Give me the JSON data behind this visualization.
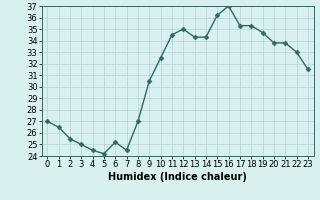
{
  "x": [
    0,
    1,
    2,
    3,
    4,
    5,
    6,
    7,
    8,
    9,
    10,
    11,
    12,
    13,
    14,
    15,
    16,
    17,
    18,
    19,
    20,
    21,
    22,
    23
  ],
  "y": [
    27,
    26.5,
    25.5,
    25,
    24.5,
    24.2,
    25.2,
    24.5,
    27,
    30.5,
    32.5,
    34.5,
    35,
    34.3,
    34.3,
    36.2,
    37,
    35.3,
    35.3,
    34.7,
    33.8,
    33.8,
    33,
    31.5
  ],
  "line_color": "#2e6b5e",
  "marker_color": "#2e6b5e",
  "bg_color": "#d8f0ee",
  "grid_color": "#b8d4d0",
  "xlabel": "Humidex (Indice chaleur)",
  "ylim": [
    24,
    37
  ],
  "xlim": [
    -0.5,
    23.5
  ],
  "yticks": [
    24,
    25,
    26,
    27,
    28,
    29,
    30,
    31,
    32,
    33,
    34,
    35,
    36,
    37
  ],
  "xticks": [
    0,
    1,
    2,
    3,
    4,
    5,
    6,
    7,
    8,
    9,
    10,
    11,
    12,
    13,
    14,
    15,
    16,
    17,
    18,
    19,
    20,
    21,
    22,
    23
  ],
  "xlabel_fontsize": 7,
  "tick_fontsize": 6,
  "marker_size": 2.5,
  "line_width": 1.0
}
